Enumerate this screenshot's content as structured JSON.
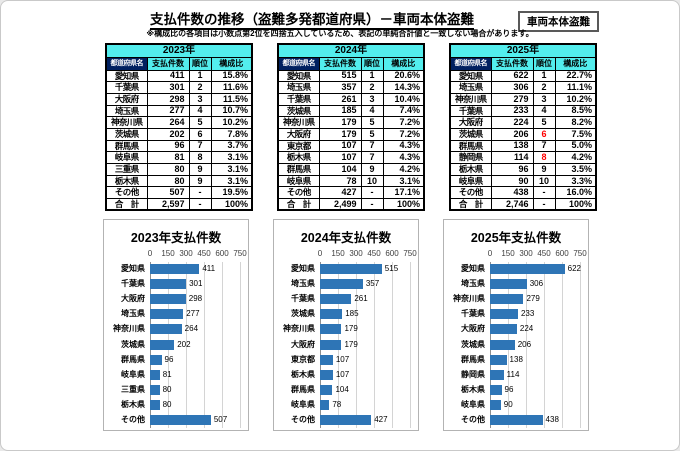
{
  "page": {
    "title": "支払件数の推移（盗難多発都道府県）－車両本体盗難",
    "badge": "車両本体盗難",
    "note": "※構成比の各項目は小数点第2位を四捨五入しているため、表記の単純合計値と一致しない場合があります。"
  },
  "colors": {
    "header_cyan": "#53EDED",
    "header_navy": "#002060",
    "bar_blue": "#2E75B6",
    "rank_red": "#FF0000"
  },
  "tables": [
    {
      "year": "2023年",
      "columns": [
        "都道府県名",
        "支払件数",
        "順位",
        "構成比"
      ],
      "rows": [
        {
          "pref": "愛知県",
          "count": "411",
          "rank": "1",
          "share": "15.8%"
        },
        {
          "pref": "千葉県",
          "count": "301",
          "rank": "2",
          "share": "11.6%"
        },
        {
          "pref": "大阪府",
          "count": "298",
          "rank": "3",
          "share": "11.5%"
        },
        {
          "pref": "埼玉県",
          "count": "277",
          "rank": "4",
          "share": "10.7%"
        },
        {
          "pref": "神奈川県",
          "count": "264",
          "rank": "5",
          "share": "10.2%"
        },
        {
          "pref": "茨城県",
          "count": "202",
          "rank": "6",
          "share": "7.8%"
        },
        {
          "pref": "群馬県",
          "count": "96",
          "rank": "7",
          "share": "3.7%"
        },
        {
          "pref": "岐阜県",
          "count": "81",
          "rank": "8",
          "share": "3.1%"
        },
        {
          "pref": "三重県",
          "count": "80",
          "rank": "9",
          "share": "3.1%"
        },
        {
          "pref": "栃木県",
          "count": "80",
          "rank": "9",
          "share": "3.1%"
        },
        {
          "pref": "その他",
          "count": "507",
          "rank": "-",
          "share": "19.5%"
        },
        {
          "pref": "合　計",
          "count": "2,597",
          "rank": "-",
          "share": "100%",
          "total": true
        }
      ]
    },
    {
      "year": "2024年",
      "columns": [
        "都道府県名",
        "支払件数",
        "順位",
        "構成比"
      ],
      "rows": [
        {
          "pref": "愛知県",
          "count": "515",
          "rank": "1",
          "share": "20.6%"
        },
        {
          "pref": "埼玉県",
          "count": "357",
          "rank": "2",
          "share": "14.3%"
        },
        {
          "pref": "千葉県",
          "count": "261",
          "rank": "3",
          "share": "10.4%"
        },
        {
          "pref": "茨城県",
          "count": "185",
          "rank": "4",
          "share": "7.4%"
        },
        {
          "pref": "神奈川県",
          "count": "179",
          "rank": "5",
          "share": "7.2%"
        },
        {
          "pref": "大阪府",
          "count": "179",
          "rank": "5",
          "share": "7.2%"
        },
        {
          "pref": "東京都",
          "count": "107",
          "rank": "7",
          "share": "4.3%"
        },
        {
          "pref": "栃木県",
          "count": "107",
          "rank": "7",
          "share": "4.3%"
        },
        {
          "pref": "群馬県",
          "count": "104",
          "rank": "9",
          "share": "4.2%"
        },
        {
          "pref": "岐阜県",
          "count": "78",
          "rank": "10",
          "share": "3.1%"
        },
        {
          "pref": "その他",
          "count": "427",
          "rank": "-",
          "share": "17.1%"
        },
        {
          "pref": "合　計",
          "count": "2,499",
          "rank": "-",
          "share": "100%",
          "total": true
        }
      ]
    },
    {
      "year": "2025年",
      "columns": [
        "都道府県名",
        "支払件数",
        "順位",
        "構成比"
      ],
      "rows": [
        {
          "pref": "愛知県",
          "count": "622",
          "rank": "1",
          "share": "22.7%"
        },
        {
          "pref": "埼玉県",
          "count": "306",
          "rank": "2",
          "share": "11.1%"
        },
        {
          "pref": "神奈川県",
          "count": "279",
          "rank": "3",
          "share": "10.2%"
        },
        {
          "pref": "千葉県",
          "count": "233",
          "rank": "4",
          "share": "8.5%"
        },
        {
          "pref": "大阪府",
          "count": "224",
          "rank": "5",
          "share": "8.2%"
        },
        {
          "pref": "茨城県",
          "count": "206",
          "rank": "6",
          "share": "7.5%",
          "rank_red": true
        },
        {
          "pref": "群馬県",
          "count": "138",
          "rank": "7",
          "share": "5.0%"
        },
        {
          "pref": "静岡県",
          "count": "114",
          "rank": "8",
          "share": "4.2%",
          "rank_red": true
        },
        {
          "pref": "栃木県",
          "count": "96",
          "rank": "9",
          "share": "3.5%"
        },
        {
          "pref": "岐阜県",
          "count": "90",
          "rank": "10",
          "share": "3.3%"
        },
        {
          "pref": "その他",
          "count": "438",
          "rank": "-",
          "share": "16.0%"
        },
        {
          "pref": "合　計",
          "count": "2,746",
          "rank": "-",
          "share": "100%",
          "total": true
        }
      ]
    }
  ],
  "chart_data": [
    {
      "type": "bar",
      "title": "2023年支払件数",
      "orientation": "horizontal",
      "categories": [
        "愛知県",
        "千葉県",
        "大阪府",
        "埼玉県",
        "神奈川県",
        "茨城県",
        "群馬県",
        "岐阜県",
        "三重県",
        "栃木県",
        "その他"
      ],
      "values": [
        411,
        301,
        298,
        277,
        264,
        202,
        96,
        81,
        80,
        80,
        507
      ],
      "xlabel": "",
      "ylabel": "",
      "xlim": [
        0,
        750
      ],
      "xticks": [
        0,
        150,
        300,
        450,
        600,
        750
      ],
      "grid": true,
      "legend": false
    },
    {
      "type": "bar",
      "title": "2024年支払件数",
      "orientation": "horizontal",
      "categories": [
        "愛知県",
        "埼玉県",
        "千葉県",
        "茨城県",
        "神奈川県",
        "大阪府",
        "東京都",
        "栃木県",
        "群馬県",
        "岐阜県",
        "その他"
      ],
      "values": [
        515,
        357,
        261,
        185,
        179,
        179,
        107,
        107,
        104,
        78,
        427
      ],
      "xlabel": "",
      "ylabel": "",
      "xlim": [
        0,
        750
      ],
      "xticks": [
        0,
        150,
        300,
        450,
        600,
        750
      ],
      "grid": true,
      "legend": false
    },
    {
      "type": "bar",
      "title": "2025年支払件数",
      "orientation": "horizontal",
      "categories": [
        "愛知県",
        "埼玉県",
        "神奈川県",
        "千葉県",
        "大阪府",
        "茨城県",
        "群馬県",
        "静岡県",
        "栃木県",
        "岐阜県",
        "その他"
      ],
      "values": [
        622,
        306,
        279,
        233,
        224,
        206,
        138,
        114,
        96,
        90,
        438
      ],
      "xlabel": "",
      "ylabel": "",
      "xlim": [
        0,
        750
      ],
      "xticks": [
        0,
        150,
        300,
        450,
        600,
        750
      ],
      "grid": true,
      "legend": false
    }
  ]
}
